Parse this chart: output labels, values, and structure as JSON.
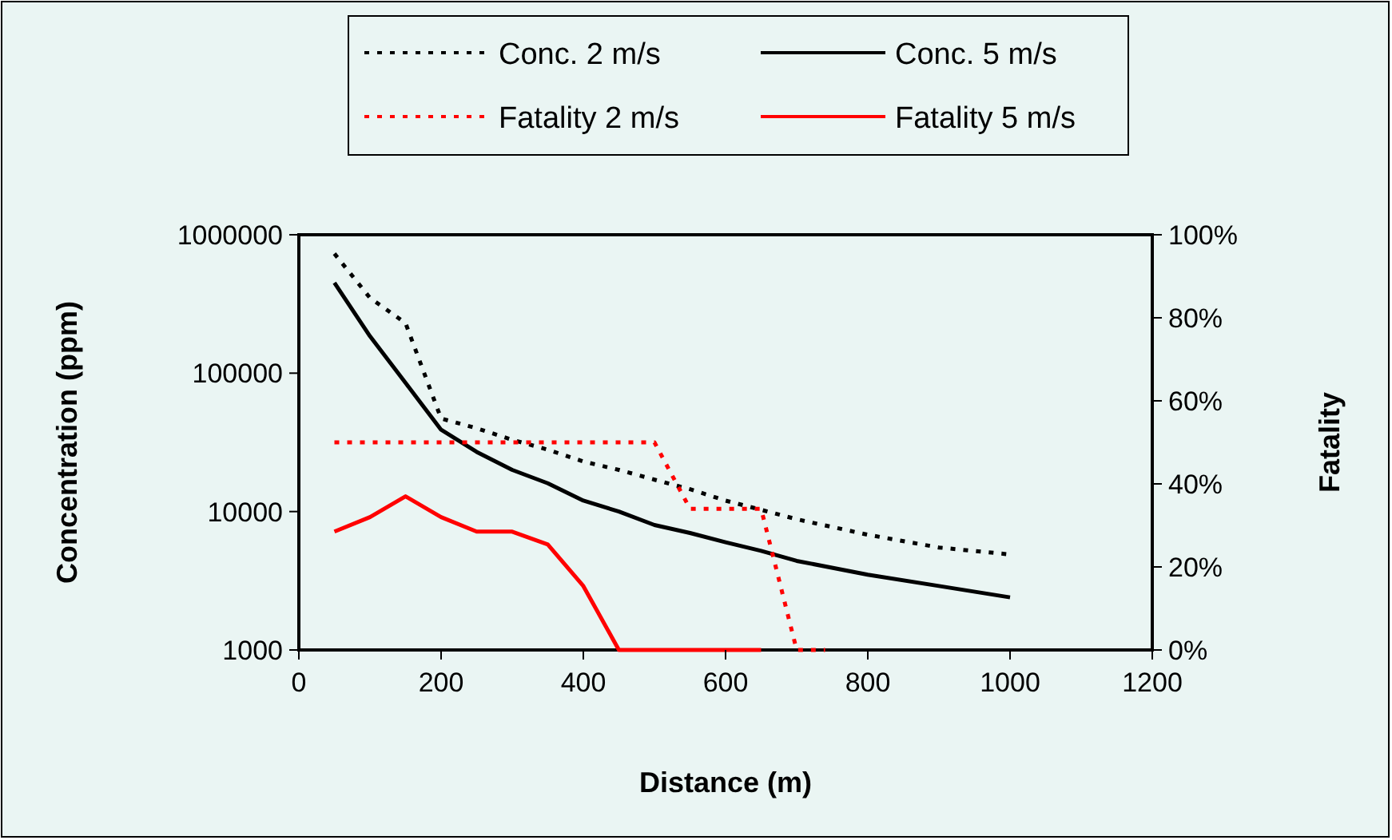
{
  "chart_data": {
    "type": "line",
    "xlabel": "Distance (m)",
    "ylabel": "Concentration (ppm)",
    "y2label": "Fatality",
    "log": "y",
    "grid": false,
    "legend": "top",
    "marker": "none",
    "xlim": [
      0,
      1200
    ],
    "xticks": [
      0,
      200,
      400,
      600,
      800,
      1000,
      1200
    ],
    "ylim": [
      1000,
      1000000
    ],
    "yticks": [
      1000,
      10000,
      100000,
      1000000
    ],
    "y2lim": [
      0,
      100
    ],
    "y2ticks": [
      {
        "value": 0,
        "label": "0%"
      },
      {
        "value": 20,
        "label": "20%"
      },
      {
        "value": 40,
        "label": "40%"
      },
      {
        "value": 60,
        "label": "60%"
      },
      {
        "value": 80,
        "label": "80%"
      },
      {
        "value": 100,
        "label": "100%"
      }
    ],
    "series": [
      {
        "name": "Conc. 2 m/s",
        "color": "#000000",
        "line_style": "dotted",
        "x": [
          50,
          100,
          150,
          200,
          250,
          300,
          350,
          400,
          450,
          500,
          550,
          600,
          650,
          700,
          800,
          900,
          1000
        ],
        "values": [
          730000,
          350000,
          230000,
          47000,
          40000,
          33000,
          28000,
          23000,
          20000,
          17000,
          14500,
          12000,
          10300,
          8800,
          6800,
          5500,
          4900
        ]
      },
      {
        "name": "Conc. 5 m/s",
        "color": "#000000",
        "line_style": "solid",
        "x": [
          50,
          100,
          150,
          200,
          250,
          300,
          350,
          400,
          450,
          500,
          550,
          600,
          650,
          700,
          800,
          900,
          1000
        ],
        "values": [
          450000,
          185000,
          85000,
          39000,
          27000,
          20000,
          16000,
          12000,
          10000,
          8000,
          7000,
          6000,
          5200,
          4400,
          3500,
          2900,
          2400
        ]
      },
      {
        "name": "Fatality 2 m/s",
        "color": "#ff0000",
        "line_style": "dotted",
        "axis": "y2",
        "x": [
          50,
          100,
          150,
          200,
          250,
          300,
          350,
          400,
          450,
          500,
          550,
          600,
          650,
          700,
          740
        ],
        "values": [
          50,
          50,
          50,
          50,
          50,
          50,
          50,
          50,
          50,
          50,
          34,
          34,
          34,
          0,
          0
        ]
      },
      {
        "name": "Fatality 5 m/s",
        "color": "#ff0000",
        "line_style": "solid",
        "axis": "y2",
        "x": [
          50,
          100,
          150,
          200,
          250,
          300,
          350,
          400,
          450,
          500,
          550,
          600,
          650
        ],
        "values": [
          28.5,
          32,
          37,
          32,
          28.5,
          28.5,
          25.4,
          15.4,
          0,
          0,
          0,
          0,
          0
        ]
      }
    ]
  }
}
